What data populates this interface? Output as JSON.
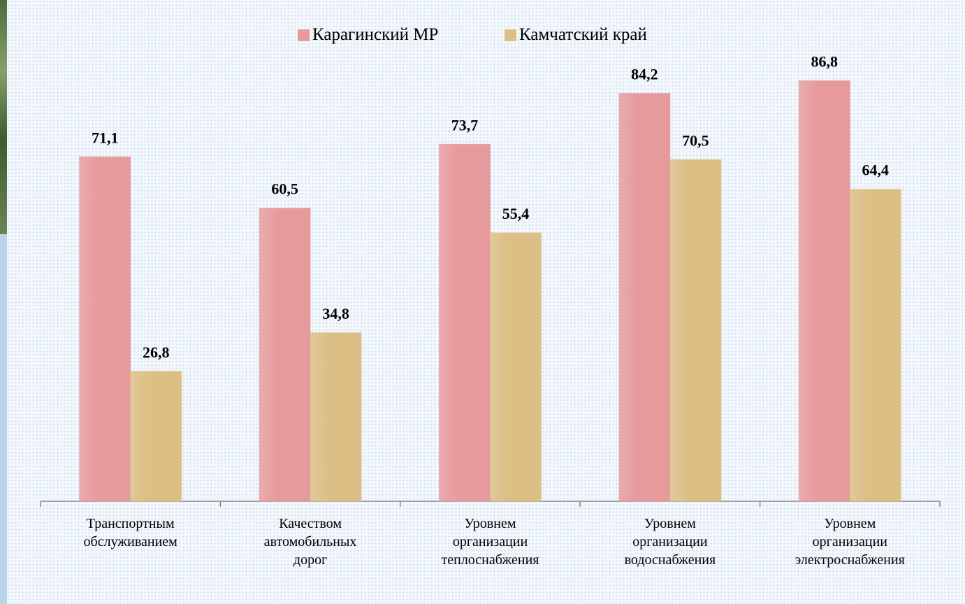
{
  "chart_data": {
    "type": "bar",
    "categories": [
      "Транспортным\nобслуживанием",
      "Качеством\nавтомобильных\nдорог",
      "Уровнем\nорганизации\nтеплоснабжения",
      "Уровнем\nорганизации\nводоснабжения",
      "Уровнем\nорганизации\nэлектроснабжения"
    ],
    "series": [
      {
        "name": "Карагинский МР",
        "color": "#e79a9c",
        "values": [
          71.1,
          60.5,
          73.7,
          84.2,
          86.8
        ],
        "value_labels": [
          "71,1",
          "60,5",
          "73,7",
          "84,2",
          "86,8"
        ]
      },
      {
        "name": "Камчатский край",
        "color": "#dcbf84",
        "values": [
          26.8,
          34.8,
          55.4,
          70.5,
          64.4
        ],
        "value_labels": [
          "26,8",
          "34,8",
          "55,4",
          "70,5",
          "64,4"
        ]
      }
    ],
    "ylim": [
      0,
      100
    ],
    "grid": false,
    "legend": "top"
  }
}
